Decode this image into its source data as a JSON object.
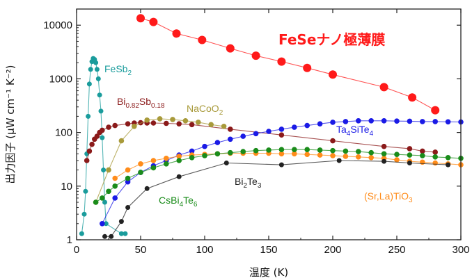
{
  "chart_data": {
    "type": "scatter",
    "xlabel": "温度 (K)",
    "ylabel": "出力因子 (μW cm⁻¹ K⁻²)",
    "xlim": [
      0,
      300
    ],
    "ylim": [
      1,
      20000
    ],
    "yscale": "log",
    "x_ticks": [
      "0",
      "50",
      "100",
      "150",
      "200",
      "250",
      "300"
    ],
    "y_ticks": [
      "1",
      "10",
      "100",
      "1000",
      "10000"
    ],
    "series": [
      {
        "name": "FeSeナノ極薄膜",
        "color": "#ff1a1a",
        "marker_size": 6,
        "x": [
          50,
          60,
          78,
          98,
          120,
          140,
          160,
          180,
          200,
          240,
          262,
          280
        ],
        "y": [
          13500,
          11500,
          7000,
          5300,
          3700,
          2700,
          2100,
          1600,
          1200,
          700,
          450,
          260
        ]
      },
      {
        "name": "FeSb",
        "name_sub": "2",
        "color": "#1a9c9c",
        "marker_size": 3.5,
        "x": [
          4,
          6,
          7,
          8,
          9,
          10,
          11,
          12,
          13,
          14,
          15,
          16,
          17,
          18,
          19,
          20,
          21,
          22,
          23,
          35,
          38
        ],
        "y": [
          1.3,
          3,
          8,
          40,
          200,
          800,
          1500,
          2100,
          2400,
          2300,
          2000,
          1500,
          1000,
          500,
          250,
          80,
          20,
          5,
          2,
          1.3,
          1.3
        ]
      },
      {
        "name": "Bi",
        "name_sub": "0.82",
        "name_mid": "Sb",
        "name_sub2": "0.18",
        "color": "#8b1a1a",
        "marker_size": 3.8,
        "x": [
          8,
          10,
          12,
          14,
          16,
          18,
          20,
          25,
          30,
          40,
          45,
          50,
          55,
          60,
          70,
          80,
          90,
          120,
          160,
          200,
          240,
          260,
          270,
          280
        ],
        "y": [
          30,
          45,
          60,
          75,
          85,
          100,
          110,
          125,
          135,
          145,
          150,
          152,
          150,
          150,
          148,
          145,
          140,
          115,
          90,
          70,
          55,
          50,
          45,
          43
        ]
      },
      {
        "name": "NaCoO",
        "name_sub": "2",
        "color": "#a89a3a",
        "marker_size": 3.8,
        "x": [
          15,
          25,
          35,
          45,
          55,
          65,
          75,
          85,
          95,
          105,
          115
        ],
        "y": [
          5,
          20,
          70,
          130,
          170,
          180,
          175,
          165,
          155,
          140,
          130
        ]
      },
      {
        "name": "Ta",
        "name_sub": "4",
        "name_mid": "SiTe",
        "name_sub2": "4",
        "color": "#1a1ae6",
        "marker_size": 3.8,
        "x": [
          20,
          30,
          40,
          50,
          60,
          70,
          80,
          90,
          100,
          110,
          120,
          130,
          140,
          150,
          160,
          170,
          180,
          190,
          200,
          210,
          220,
          230,
          240,
          250,
          260,
          270,
          280,
          290,
          300
        ],
        "y": [
          2,
          6,
          12,
          18,
          24,
          30,
          38,
          45,
          55,
          65,
          75,
          85,
          95,
          105,
          115,
          125,
          135,
          145,
          155,
          160,
          165,
          165,
          165,
          163,
          162,
          160,
          160,
          158,
          157
        ]
      },
      {
        "name": "(Sr,La)TiO",
        "name_sub": "3",
        "color": "#ff8c1a",
        "marker_size": 3.8,
        "x": [
          30,
          40,
          50,
          60,
          70,
          80,
          90,
          100,
          110,
          120,
          130,
          140,
          150,
          160,
          170,
          180,
          190,
          200,
          210,
          220,
          230,
          240,
          250,
          260,
          270,
          280,
          290,
          300
        ],
        "y": [
          14,
          20,
          26,
          30,
          33,
          36,
          38,
          39,
          40,
          41,
          41,
          41,
          41,
          40,
          40,
          39,
          38,
          37,
          36,
          35,
          34,
          33,
          31,
          29,
          28,
          27,
          26,
          25
        ]
      },
      {
        "name": "CsBi",
        "name_sub": "4",
        "name_mid": "Te",
        "name_sub2": "6",
        "color": "#1a8c1a",
        "marker_size": 3.8,
        "x": [
          15,
          20,
          25,
          30,
          40,
          50,
          60,
          70,
          80,
          90,
          100,
          110,
          120,
          130,
          140,
          150,
          160,
          170,
          180,
          190,
          200,
          210,
          220,
          230,
          240,
          250,
          260,
          270,
          280,
          290,
          300
        ],
        "y": [
          5,
          6,
          8,
          10,
          14,
          18,
          22,
          26,
          30,
          34,
          37,
          40,
          42,
          44,
          46,
          47,
          48,
          48,
          48,
          47,
          46,
          45,
          44,
          42,
          40,
          39,
          38,
          37,
          35,
          34,
          33
        ]
      },
      {
        "name": "Bi",
        "name_sub": "2",
        "name_mid": "Te",
        "name_sub2": "3",
        "color": "#222222",
        "marker_size": 3.5,
        "x": [
          22,
          27,
          35,
          40,
          55,
          80,
          117,
          160,
          205,
          240,
          260,
          290
        ],
        "y": [
          1.15,
          1.15,
          2.2,
          4,
          9,
          15,
          27,
          25,
          30,
          29,
          27,
          25
        ]
      }
    ]
  }
}
